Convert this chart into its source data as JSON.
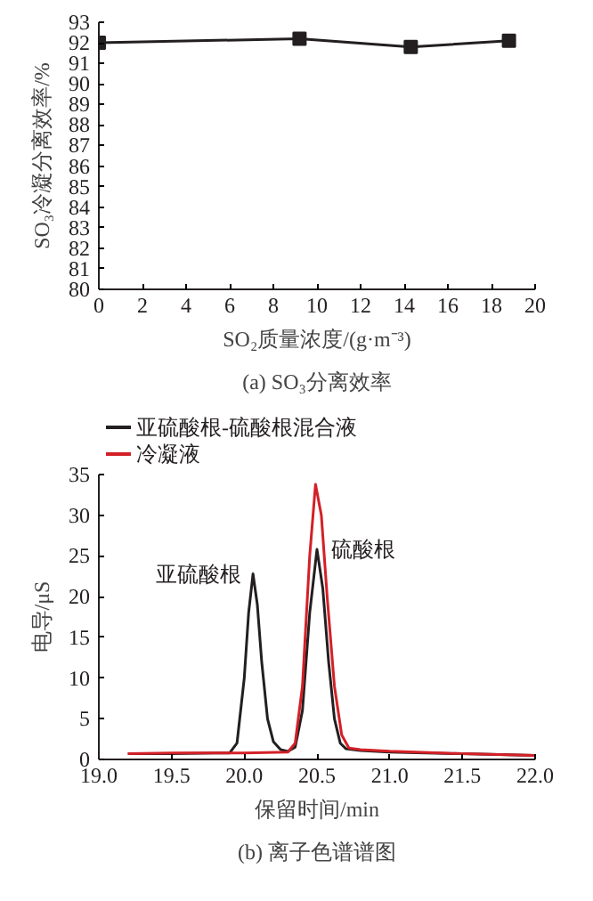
{
  "chart_data": [
    {
      "type": "line",
      "title": "(a) SO₃分离效率",
      "xlabel": "SO₂质量浓度/(g·m⁻³)",
      "ylabel": "SO₃冷凝分离效率/%",
      "x": [
        0,
        9.2,
        14.3,
        18.8
      ],
      "series": [
        {
          "color": "#231f20",
          "values": [
            92.0,
            92.2,
            91.8,
            92.1
          ]
        }
      ],
      "xlim": [
        0,
        20
      ],
      "xticks": [
        0,
        2,
        4,
        6,
        8,
        10,
        12,
        14,
        16,
        18,
        20
      ],
      "ylim": [
        80,
        93
      ],
      "yticks": [
        80,
        81,
        82,
        83,
        84,
        85,
        86,
        87,
        88,
        89,
        90,
        91,
        92,
        93
      ],
      "marker": "square",
      "line_style": "solid",
      "grid": false,
      "legend": false
    },
    {
      "type": "line",
      "title": "(b) 离子色谱谱图",
      "xlabel": "保留时间/min",
      "ylabel": "电导/μS",
      "series": [
        {
          "name": "亚硫酸根-硫酸根混合液",
          "color": "#231f20",
          "x": [
            19.2,
            19.5,
            19.8,
            19.9,
            19.95,
            20.0,
            20.03,
            20.06,
            20.09,
            20.12,
            20.16,
            20.2,
            20.25,
            20.3,
            20.35,
            20.4,
            20.45,
            20.5,
            20.54,
            20.58,
            20.62,
            20.66,
            20.7,
            20.8,
            21.0,
            21.5,
            22.0
          ],
          "values": [
            0.7,
            0.7,
            0.8,
            0.8,
            2,
            10,
            18,
            22.8,
            19,
            12,
            5,
            2.2,
            1.2,
            1.0,
            1.5,
            6,
            18,
            25.8,
            21,
            12,
            5,
            2,
            1.3,
            1.1,
            0.9,
            0.7,
            0.5
          ]
        },
        {
          "name": "冷凝液",
          "color": "#d42027",
          "x": [
            19.2,
            19.5,
            20.0,
            20.3,
            20.35,
            20.4,
            20.45,
            20.49,
            20.53,
            20.57,
            20.62,
            20.67,
            20.72,
            20.8,
            21.0,
            21.5,
            22.0
          ],
          "values": [
            0.7,
            0.8,
            0.8,
            0.9,
            2,
            9,
            25,
            33.8,
            30,
            20,
            9,
            3,
            1.4,
            1.2,
            1.0,
            0.7,
            0.5
          ]
        }
      ],
      "annotations": [
        {
          "text": "亚硫酸根",
          "x": 20.06,
          "y": 22.8
        },
        {
          "text": "硫酸根",
          "x": 20.5,
          "y": 25.8
        }
      ],
      "xlim": [
        19.0,
        22.0
      ],
      "xticks": [
        {
          "value": 19.0,
          "label": "19.0"
        },
        {
          "value": 19.5,
          "label": "19.5"
        },
        {
          "value": 20.0,
          "label": "20.0"
        },
        {
          "value": 20.5,
          "label": "20.5"
        },
        {
          "value": 21.0,
          "label": "21.0"
        },
        {
          "value": 21.5,
          "label": "21.5"
        },
        {
          "value": 22.0,
          "label": "22.0"
        }
      ],
      "ylim": [
        0,
        35
      ],
      "yticks": [
        0,
        5,
        10,
        15,
        20,
        25,
        30,
        35
      ],
      "marker": "none",
      "line_style": "solid",
      "grid": false,
      "legend": "top left"
    }
  ]
}
